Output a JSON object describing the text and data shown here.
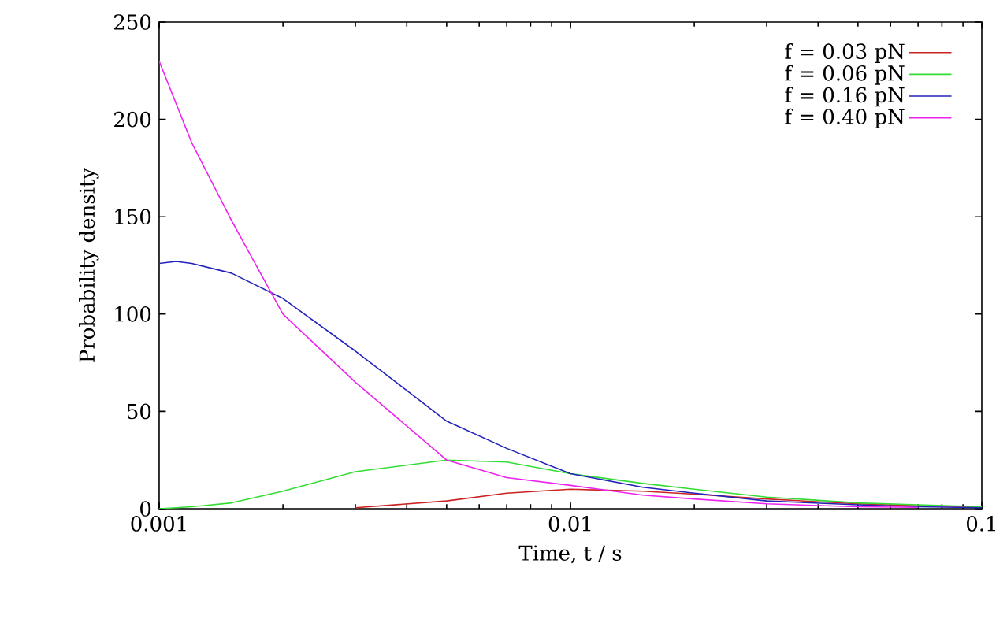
{
  "chart_data": {
    "type": "line",
    "xlabel": "Time, t / s",
    "ylabel": "Probability density",
    "log": "x",
    "x": [
      0.001,
      0.0011,
      0.0012,
      0.0015,
      0.002,
      0.003,
      0.005,
      0.007,
      0.01,
      0.015,
      0.02,
      0.03,
      0.05,
      0.07,
      0.1
    ],
    "series": [
      {
        "name": "f = 0.03 pN",
        "color": "#cc2222",
        "values": [
          null,
          null,
          null,
          null,
          null,
          0.5,
          4,
          8,
          10,
          9,
          7.5,
          5,
          2.5,
          1.5,
          1
        ]
      },
      {
        "name": "f = 0.06 pN",
        "color": "#33dd33",
        "values": [
          0,
          0.5,
          1,
          3,
          9,
          19,
          25,
          24,
          18,
          13,
          10,
          6,
          3,
          2,
          1
        ]
      },
      {
        "name": "f = 0.16 pN",
        "color": "#2222bb",
        "values": [
          126,
          127,
          126,
          121,
          108,
          81,
          45,
          31,
          18,
          11,
          8,
          4,
          2,
          1,
          0.5
        ]
      },
      {
        "name": "f = 0.40 pN",
        "color": "#ee22ee",
        "values": [
          230,
          208,
          188,
          148,
          100,
          65,
          25,
          16,
          12,
          7,
          5,
          2.5,
          1,
          0.7,
          null
        ]
      }
    ],
    "xlim": [
      0.001,
      0.1
    ],
    "ylim": [
      0,
      250
    ],
    "xticks": [
      0.001,
      0.01,
      0.1
    ],
    "yticks": [
      0,
      50,
      100,
      150,
      200,
      250
    ],
    "legend": "top right",
    "grid": false,
    "marker": "none",
    "line_style": "solid"
  }
}
